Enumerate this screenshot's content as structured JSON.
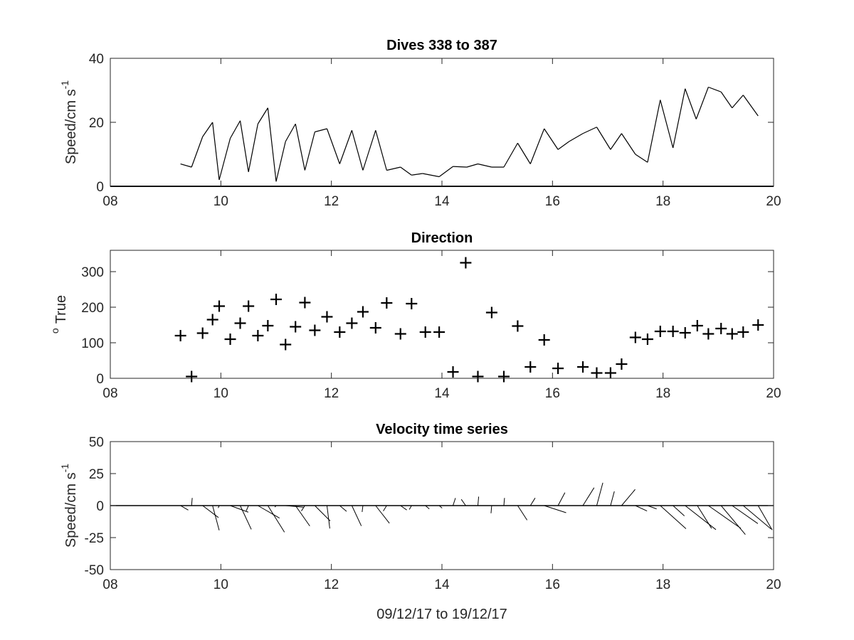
{
  "chart_data": [
    {
      "type": "line",
      "title": "Dives 338 to 387",
      "ylabel": "Speed/cm s",
      "ylabel_superscript": "-1",
      "xlim": [
        8,
        20
      ],
      "ylim": [
        0,
        40
      ],
      "xticks": [
        "08",
        "10",
        "12",
        "14",
        "16",
        "18",
        "20"
      ],
      "yticks": [
        "0",
        "20",
        "40"
      ],
      "series": [
        {
          "x": [
            9.27,
            9.47,
            9.67,
            9.85,
            9.97,
            10.17,
            10.35,
            10.5,
            10.67,
            10.85,
            11.0,
            11.17,
            11.35,
            11.52,
            11.7,
            11.92,
            12.15,
            12.37,
            12.57,
            12.8,
            13.0,
            13.25,
            13.45,
            13.65,
            13.95,
            14.2,
            14.45,
            14.65,
            14.9,
            15.12,
            15.37,
            15.6,
            15.85,
            16.1,
            16.3,
            16.55,
            16.8,
            17.05,
            17.25,
            17.5,
            17.72,
            17.95,
            18.18,
            18.4,
            18.6,
            18.82,
            19.05,
            19.25,
            19.45,
            19.72
          ],
          "y": [
            7,
            6,
            15.5,
            20,
            2,
            15,
            20.5,
            4.5,
            19.5,
            24.5,
            1.5,
            14,
            19.5,
            5,
            17,
            18,
            7,
            17.5,
            5,
            17.5,
            5,
            6,
            3.5,
            4,
            3,
            6.2,
            6,
            7,
            6,
            6,
            13.5,
            7,
            18,
            11.5,
            14,
            16.5,
            18.5,
            11.5,
            16.5,
            10,
            7.5,
            27,
            12,
            30.5,
            21,
            31,
            29.5,
            24.5,
            28.5,
            22
          ]
        }
      ]
    },
    {
      "type": "scatter",
      "title": "Direction",
      "ylabel": "True",
      "ylabel_superscript": "o",
      "xlim": [
        8,
        20
      ],
      "ylim": [
        0,
        360
      ],
      "xticks": [
        "08",
        "10",
        "12",
        "14",
        "16",
        "18",
        "20"
      ],
      "yticks": [
        "0",
        "100",
        "200",
        "300"
      ],
      "series": [
        {
          "x": [
            9.27,
            9.47,
            9.67,
            9.85,
            9.97,
            10.17,
            10.35,
            10.5,
            10.67,
            10.85,
            11.0,
            11.17,
            11.35,
            11.52,
            11.7,
            11.92,
            12.15,
            12.37,
            12.57,
            12.8,
            13.0,
            13.25,
            13.45,
            13.7,
            13.95,
            14.2,
            14.43,
            14.65,
            14.9,
            15.12,
            15.37,
            15.6,
            15.85,
            16.1,
            16.55,
            16.8,
            17.05,
            17.25,
            17.5,
            17.72,
            17.95,
            18.18,
            18.4,
            18.62,
            18.82,
            19.05,
            19.25,
            19.45,
            19.72
          ],
          "y": [
            120,
            5,
            127,
            165,
            203,
            110,
            155,
            203,
            120,
            148,
            222,
            95,
            145,
            213,
            135,
            173,
            130,
            155,
            187,
            142,
            212,
            125,
            210,
            130,
            130,
            18,
            325,
            5,
            185,
            5,
            147,
            32,
            108,
            28,
            32,
            15,
            15,
            40,
            115,
            110,
            132,
            132,
            128,
            148,
            125,
            140,
            125,
            130,
            150
          ]
        }
      ]
    },
    {
      "type": "quiver",
      "title": "Velocity time series",
      "xlabel": "09/12/17 to 19/12/17",
      "ylabel": "Speed/cm s",
      "ylabel_superscript": "-1",
      "xlim": [
        8,
        20
      ],
      "ylim": [
        -50,
        50
      ],
      "xticks": [
        "08",
        "10",
        "12",
        "14",
        "16",
        "18",
        "20"
      ],
      "yticks": [
        "50",
        "25",
        "0",
        "-25",
        "-50"
      ],
      "series": [
        {
          "x": [
            9.27,
            9.47,
            9.67,
            9.85,
            9.97,
            10.17,
            10.35,
            10.5,
            10.67,
            10.85,
            11.0,
            11.17,
            11.35,
            11.52,
            11.7,
            11.92,
            12.15,
            12.37,
            12.57,
            12.8,
            13.0,
            13.25,
            13.45,
            13.7,
            13.95,
            14.2,
            14.43,
            14.65,
            14.9,
            15.12,
            15.37,
            15.6,
            15.85,
            16.1,
            16.55,
            16.8,
            17.05,
            17.25,
            17.5,
            17.72,
            17.95,
            18.18,
            18.4,
            18.62,
            18.82,
            19.05,
            19.25,
            19.45,
            19.72
          ],
          "speed": [
            7,
            6,
            15.5,
            20,
            2,
            15,
            20.5,
            4.5,
            19.5,
            24.5,
            1.5,
            14,
            19.5,
            5,
            17,
            18,
            7,
            17.5,
            5,
            17.5,
            5,
            6,
            3.5,
            4,
            3,
            6.2,
            6,
            7,
            6,
            6,
            13.5,
            7,
            18,
            11.5,
            16.5,
            18.5,
            11.5,
            16.5,
            10,
            7.5,
            27,
            12,
            30.5,
            21,
            31,
            29.5,
            24.5,
            28.5,
            22
          ],
          "direction_deg_true": [
            120,
            5,
            127,
            165,
            203,
            110,
            155,
            203,
            120,
            148,
            222,
            95,
            145,
            213,
            135,
            173,
            130,
            155,
            187,
            142,
            212,
            125,
            210,
            130,
            130,
            18,
            325,
            5,
            185,
            5,
            147,
            32,
            108,
            28,
            32,
            15,
            15,
            40,
            115,
            110,
            132,
            132,
            128,
            148,
            125,
            140,
            125,
            130,
            150
          ]
        }
      ]
    }
  ]
}
